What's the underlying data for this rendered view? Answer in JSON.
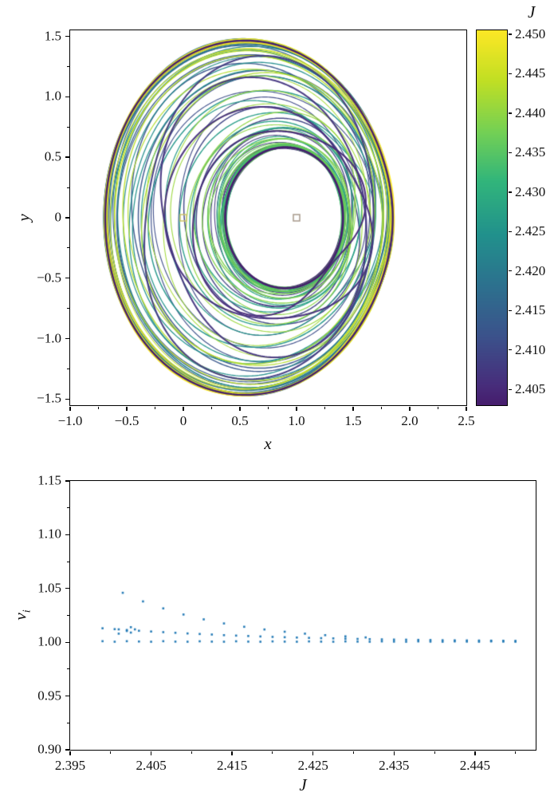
{
  "top_plot": {
    "xlabel": "x",
    "ylabel": "y",
    "xlim": [
      -1.0,
      2.5
    ],
    "ylim": [
      -1.55,
      1.55
    ],
    "x_tick_values": [
      -1.0,
      -0.5,
      0,
      0.5,
      1.0,
      1.5,
      2.0,
      2.5
    ],
    "x_tick_labels": [
      "−1.0",
      "−0.5",
      "0",
      "0.5",
      "1.0",
      "1.5",
      "2.0",
      "2.5"
    ],
    "y_tick_values": [
      -1.5,
      -1.0,
      -0.5,
      0,
      0.5,
      1.0,
      1.5
    ],
    "y_tick_labels": [
      "−1.5",
      "−1.0",
      "−0.5",
      "0",
      "0.5",
      "1.0",
      "1.5"
    ],
    "markers": [
      {
        "x": 0,
        "y": 0,
        "shape": "open-square",
        "color": "#cdc36a"
      },
      {
        "x": 1,
        "y": 0,
        "shape": "open-square",
        "color": "#a89a8c"
      }
    ]
  },
  "colorbar": {
    "label": "J",
    "min": 2.403,
    "max": 2.4505,
    "tick_values": [
      2.405,
      2.41,
      2.415,
      2.42,
      2.425,
      2.43,
      2.435,
      2.44,
      2.445,
      2.45
    ],
    "tick_labels": [
      "2.405",
      "2.410",
      "2.415",
      "2.420",
      "2.425",
      "2.430",
      "2.435",
      "2.440",
      "2.445",
      "2.450"
    ],
    "colormap": "viridis"
  },
  "bottom_plot": {
    "xlabel": "J",
    "ylabel_main": "v",
    "ylabel_sub": "i",
    "xlim": [
      2.395,
      2.4525
    ],
    "ylim": [
      0.9,
      1.15
    ],
    "x_tick_values": [
      2.395,
      2.405,
      2.415,
      2.425,
      2.435,
      2.445
    ],
    "x_tick_labels": [
      "2.395",
      "2.405",
      "2.415",
      "2.425",
      "2.435",
      "2.445"
    ],
    "y_tick_values": [
      0.9,
      0.95,
      1.0,
      1.05,
      1.1,
      1.15
    ],
    "y_tick_labels": [
      "0.90",
      "0.95",
      "1.00",
      "1.05",
      "1.10",
      "1.15"
    ],
    "marker_color": "#1f77b4"
  },
  "chart_data": [
    {
      "type": "line",
      "title": "",
      "xlabel": "x",
      "ylabel": "y",
      "xlim": [
        -1.0,
        2.5
      ],
      "ylim": [
        -1.55,
        1.55
      ],
      "grid": false,
      "legend": "none",
      "series_description": "Family of planar periodic orbits in the x-y plane, colour-coded by Jacobi constant J (viridis colormap). Nested looping trajectories enclose both primaries, leaving a white void centred near (0.95, 0); the two primaries are marked by small open squares at (0,0) and (1,0).",
      "orbit_family": {
        "count": 85,
        "J_min": 2.403,
        "J_max": 2.4505
      },
      "colorbar": {
        "label": "J",
        "min": 2.403,
        "max": 2.4505,
        "ticks": [
          2.405,
          2.41,
          2.415,
          2.42,
          2.425,
          2.43,
          2.435,
          2.44,
          2.445,
          2.45
        ]
      }
    },
    {
      "type": "scatter",
      "title": "",
      "xlabel": "J",
      "ylabel": "v_i",
      "xlim": [
        2.395,
        2.4525
      ],
      "ylim": [
        0.9,
        1.15
      ],
      "grid": false,
      "marker": {
        "shape": "square",
        "size": 2.6,
        "color": "#1f77b4"
      },
      "points": [
        [
          2.4015,
          1.046
        ],
        [
          2.404,
          1.038
        ],
        [
          2.4065,
          1.0315
        ],
        [
          2.409,
          1.0258
        ],
        [
          2.4115,
          1.0213
        ],
        [
          2.414,
          1.0175
        ],
        [
          2.4165,
          1.0144
        ],
        [
          2.419,
          1.0119
        ],
        [
          2.4215,
          1.0098
        ],
        [
          2.424,
          1.008
        ],
        [
          2.4265,
          1.0066
        ],
        [
          2.429,
          1.0055
        ],
        [
          2.4315,
          1.0045
        ],
        [
          2.401,
          1.008
        ],
        [
          2.401,
          1.012
        ],
        [
          2.402,
          1.0105
        ],
        [
          2.4025,
          1.009
        ],
        [
          2.4025,
          1.014
        ],
        [
          2.403,
          1.012
        ],
        [
          2.399,
          1.013
        ],
        [
          2.4005,
          1.0122
        ],
        [
          2.402,
          1.0114
        ],
        [
          2.4035,
          1.0107
        ],
        [
          2.405,
          1.01
        ],
        [
          2.4065,
          1.0094
        ],
        [
          2.408,
          1.0088
        ],
        [
          2.4095,
          1.0082
        ],
        [
          2.411,
          1.0077
        ],
        [
          2.4125,
          1.0072
        ],
        [
          2.414,
          1.0066
        ],
        [
          2.4155,
          1.0062
        ],
        [
          2.417,
          1.0058
        ],
        [
          2.4185,
          1.0054
        ],
        [
          2.42,
          1.005
        ],
        [
          2.4215,
          1.0047
        ],
        [
          2.423,
          1.0044
        ],
        [
          2.4245,
          1.0041
        ],
        [
          2.426,
          1.0038
        ],
        [
          2.4275,
          1.0036
        ],
        [
          2.429,
          1.0033
        ],
        [
          2.4305,
          1.0031
        ],
        [
          2.432,
          1.0029
        ],
        [
          2.4335,
          1.0027
        ],
        [
          2.435,
          1.0025
        ],
        [
          2.4365,
          1.0024
        ],
        [
          2.438,
          1.0022
        ],
        [
          2.4395,
          1.0021
        ],
        [
          2.441,
          1.0019
        ],
        [
          2.4425,
          1.0018
        ],
        [
          2.444,
          1.0017
        ],
        [
          2.4455,
          1.0016
        ],
        [
          2.447,
          1.0015
        ],
        [
          2.4485,
          1.0014
        ],
        [
          2.45,
          1.0013
        ],
        [
          2.399,
          1.001
        ],
        [
          2.4005,
          1.0005
        ],
        [
          2.402,
          1.001
        ],
        [
          2.4035,
          1.0007
        ],
        [
          2.405,
          1.0005
        ],
        [
          2.4065,
          1.001
        ],
        [
          2.408,
          1.0006
        ],
        [
          2.4095,
          1.0005
        ],
        [
          2.411,
          1.0009
        ],
        [
          2.4125,
          1.0006
        ],
        [
          2.414,
          1.0005
        ],
        [
          2.4155,
          1.0009
        ],
        [
          2.417,
          1.0006
        ],
        [
          2.4185,
          1.0005
        ],
        [
          2.42,
          1.0008
        ],
        [
          2.4215,
          1.0006
        ],
        [
          2.423,
          1.0005
        ],
        [
          2.4245,
          1.0008
        ],
        [
          2.426,
          1.0006
        ],
        [
          2.4275,
          1.0005
        ],
        [
          2.429,
          1.0008
        ],
        [
          2.4305,
          1.0006
        ],
        [
          2.432,
          1.0005
        ],
        [
          2.4335,
          1.0008
        ],
        [
          2.435,
          1.0006
        ],
        [
          2.4365,
          1.0005
        ],
        [
          2.438,
          1.0008
        ],
        [
          2.4395,
          1.0006
        ],
        [
          2.441,
          1.0005
        ],
        [
          2.4425,
          1.0008
        ],
        [
          2.444,
          1.0006
        ],
        [
          2.4455,
          1.0005
        ],
        [
          2.447,
          1.0008
        ],
        [
          2.4485,
          1.0006
        ],
        [
          2.45,
          1.0005
        ]
      ]
    }
  ]
}
